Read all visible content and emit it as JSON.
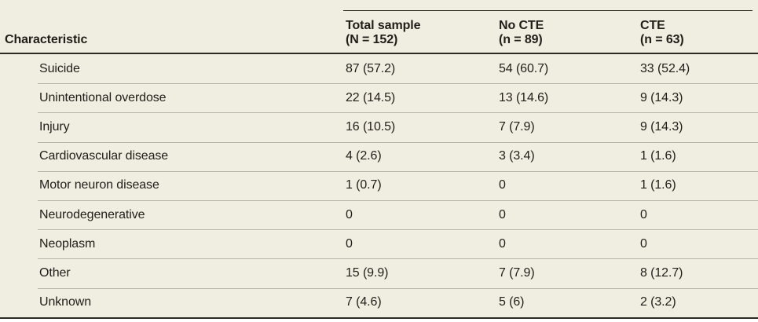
{
  "colors": {
    "table_background": "#f0ede1",
    "text": "#211e1a",
    "heavy_rule": "#2d2a24",
    "row_separator": "#b7b3a6",
    "page_background": "#ffffff"
  },
  "table": {
    "header": {
      "characteristic": "Characteristic",
      "columns": [
        {
          "title": "Total sample",
          "subtitle": "(N = 152)"
        },
        {
          "title": "No CTE",
          "subtitle": "(n = 89)"
        },
        {
          "title": "CTE",
          "subtitle": "(n = 63)"
        }
      ]
    },
    "rows": [
      {
        "label": "Suicide",
        "total_sample": "87 (57.2)",
        "no_cte": "54 (60.7)",
        "cte": "33 (52.4)"
      },
      {
        "label": "Unintentional overdose",
        "total_sample": "22 (14.5)",
        "no_cte": "13 (14.6)",
        "cte": "9 (14.3)"
      },
      {
        "label": "Injury",
        "total_sample": "16 (10.5)",
        "no_cte": "7 (7.9)",
        "cte": "9 (14.3)"
      },
      {
        "label": "Cardiovascular disease",
        "total_sample": "4 (2.6)",
        "no_cte": "3 (3.4)",
        "cte": "1 (1.6)"
      },
      {
        "label": "Motor neuron disease",
        "total_sample": "1 (0.7)",
        "no_cte": "0",
        "cte": "1 (1.6)"
      },
      {
        "label": "Neurodegenerative",
        "total_sample": "0",
        "no_cte": "0",
        "cte": "0"
      },
      {
        "label": "Neoplasm",
        "total_sample": "0",
        "no_cte": "0",
        "cte": "0"
      },
      {
        "label": "Other",
        "total_sample": "15 (9.9)",
        "no_cte": "7 (7.9)",
        "cte": "8 (12.7)"
      },
      {
        "label": "Unknown",
        "total_sample": "7 (4.6)",
        "no_cte": "5 (6)",
        "cte": "2 (3.2)"
      }
    ]
  }
}
